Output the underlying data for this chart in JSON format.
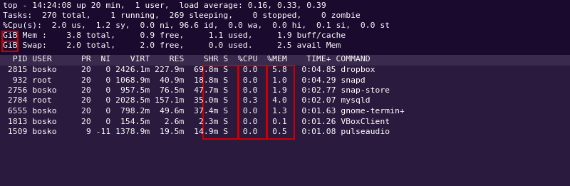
{
  "bg_color": "#1a0a2e",
  "table_bg_color": "#2a1a3e",
  "text_color": "#ffffff",
  "header_lines": [
    "top - 14:24:08 up 20 min,  1 user,  load average: 0.16, 0.33, 0.39",
    "Tasks:  270 total,    1 running,  269 sleeping,    0 stopped,    0 zombie",
    "%Cpu(s):  2.0 us,  1.2 sy,  0.0 ni, 96.6 id,  0.0 wa,  0.0 hi,  0.1 si,  0.0 st"
  ],
  "mem_line": "GiB Mem :    3.8 total,     0.9 free,     1.1 used,     1.9 buff/cache",
  "swap_line": "GiB Swap:    2.0 total,     2.0 free,     0.0 used.     2.5 avail Mem",
  "table_header": "  PID USER      PR  NI    VIRT    RES    SHR S  %CPU  %MEM    TIME+ COMMAND",
  "table_rows": [
    " 2815 bosko     20   0 2426.1m 227.9m  69.8m S   0.0   5.8   0:04.85 dropbox",
    "  932 root      20   0 1068.9m  40.9m  18.8m S   0.0   1.0   0:04.29 snapd",
    " 2756 bosko     20   0  957.5m  76.5m  47.7m S   0.0   1.9   0:02.77 snap-store",
    " 2784 root      20   0 2028.5m 157.1m  35.0m S   0.3   4.0   0:02.07 mysqld",
    " 6555 bosko     20   0  798.2m  49.6m  37.4m S   0.0   1.3   0:01.63 gnome-termin+",
    " 1813 bosko     20   0  154.5m   2.6m   2.3m S   0.0   0.1   0:01.26 VBoxClient",
    " 1509 bosko      9 -11 1378.9m  19.5m  14.9m S   0.0   0.5   0:01.08 pulseaudio"
  ],
  "highlight_color": "#cc0000",
  "font_size": 8.2,
  "mono_font": "monospace",
  "fig_width": 8.0,
  "fig_height": 2.61,
  "dpi": 100
}
